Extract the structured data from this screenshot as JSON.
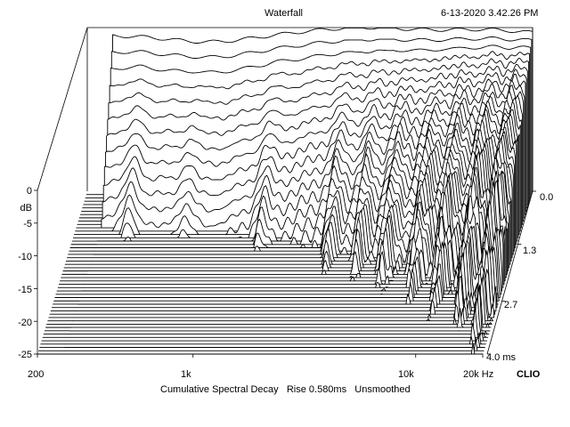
{
  "header": {
    "title": "Waterfall",
    "timestamp": "6-13-2020 3.42.26 PM"
  },
  "footer": {
    "caption": "Cumulative Spectral Decay   Rise 0.580ms   Unsmoothed",
    "brand": "CLIO"
  },
  "chart_data": {
    "type": "waterfall",
    "title": "Waterfall",
    "x_axis": {
      "scale": "log",
      "range_hz": [
        200,
        20000
      ],
      "tick_labels": [
        "200",
        "1k",
        "10k",
        "20k Hz"
      ]
    },
    "y_axis": {
      "label": "dB",
      "range_db": [
        -25,
        0
      ],
      "tick_labels": [
        "0",
        "-5",
        "-10",
        "-15",
        "-20",
        "-25"
      ]
    },
    "time_axis": {
      "range_ms": [
        0.0,
        4.0
      ],
      "tick_labels": [
        "0.0",
        "1.3",
        "2.7",
        "4.0 ms"
      ]
    },
    "slices": 50,
    "grid": false,
    "approx_series": [
      {
        "name": "first slice (0.0 ms)",
        "points_hz_db": [
          [
            260,
            -1.2
          ],
          [
            400,
            -1.8
          ],
          [
            700,
            -2.3
          ],
          [
            1000,
            -2.0
          ],
          [
            2000,
            -1.0
          ],
          [
            3000,
            -0.6
          ],
          [
            5000,
            -0.2
          ],
          [
            8000,
            -0.3
          ],
          [
            10000,
            -0.6
          ],
          [
            20000,
            -0.5
          ]
        ]
      },
      {
        "name": "last visible slice (~1.3 ms)",
        "points_hz_db": [
          [
            260,
            -13.0
          ],
          [
            500,
            -15.0
          ],
          [
            1000,
            -14.5
          ],
          [
            2000,
            -11.5
          ],
          [
            3000,
            -10.8
          ],
          [
            5000,
            -10.5
          ],
          [
            10000,
            -10.4
          ],
          [
            20000,
            -10.3
          ]
        ]
      }
    ]
  }
}
